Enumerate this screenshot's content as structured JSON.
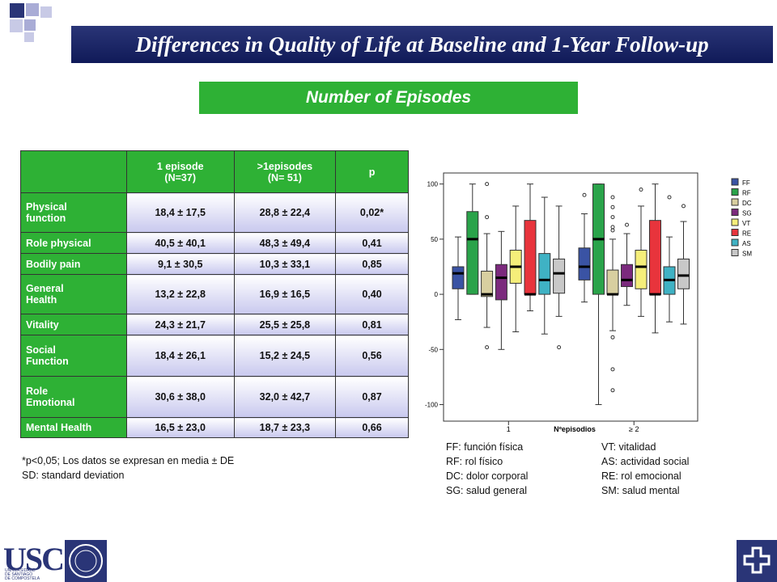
{
  "title": "Differences in Quality of Life at Baseline and 1-Year Follow-up",
  "subtitle": "Number of Episodes",
  "table": {
    "header": [
      "",
      "1 episode\n(N=37)",
      ">1episodes\n(N= 51)",
      "p"
    ],
    "rows": [
      [
        "Physical\nfunction",
        "18,4 ± 17,5",
        "28,8 ± 22,4",
        "0,02*"
      ],
      [
        "Role physical",
        "40,5 ± 40,1",
        "48,3 ± 49,4",
        "0,41"
      ],
      [
        "Bodily pain",
        "9,1 ± 30,5",
        "10,3 ± 33,1",
        "0,85"
      ],
      [
        "General\nHealth",
        "13,2 ± 22,8",
        "16,9 ± 16,5",
        "0,40"
      ],
      [
        "Vitality",
        "24,3 ± 21,7",
        "25,5 ± 25,8",
        "0,81"
      ],
      [
        "Social\nFunction",
        "18,4 ± 26,1",
        "15,2 ± 24,5",
        "0,56"
      ],
      [
        "Role\nEmotional",
        "30,6 ± 38,0",
        "32,0 ± 42,7",
        "0,87"
      ],
      [
        "Mental Health",
        "16,5 ± 23,0",
        "18,7 ± 23,3",
        "0,66"
      ]
    ]
  },
  "footnotes": [
    "*p<0,05; Los datos se expresan en media ± DE",
    "SD: standard deviation"
  ],
  "chart_data": {
    "type": "box",
    "categories": [
      "1",
      "≥ 2"
    ],
    "x_label": "Nºepisodios",
    "ylim": [
      -115,
      110
    ],
    "yticks": [
      -100,
      -50,
      0,
      50,
      100
    ],
    "series": [
      {
        "name": "FF",
        "color": "#3a53a4",
        "values": [
          {
            "min": -23,
            "q1": 5,
            "median": 19,
            "q3": 25,
            "max": 52,
            "outliers": []
          },
          {
            "min": -7,
            "q1": 13,
            "median": 25,
            "q3": 42,
            "max": 73,
            "outliers": [
              90
            ]
          }
        ]
      },
      {
        "name": "RF",
        "color": "#2aa34a",
        "values": [
          {
            "min": 0,
            "q1": 0,
            "median": 50,
            "q3": 75,
            "max": 100,
            "outliers": []
          },
          {
            "min": -100,
            "q1": 0,
            "median": 50,
            "q3": 100,
            "max": 100,
            "outliers": []
          }
        ]
      },
      {
        "name": "DC",
        "color": "#d8cfa0",
        "values": [
          {
            "min": -30,
            "q1": -2,
            "median": 0,
            "q3": 21,
            "max": 55,
            "outliers": [
              100,
              70,
              -48
            ]
          },
          {
            "min": -33,
            "q1": 0,
            "median": 0,
            "q3": 22,
            "max": 50,
            "outliers": [
              88,
              79,
              70,
              61,
              58,
              -39,
              -68,
              -87
            ]
          }
        ]
      },
      {
        "name": "SG",
        "color": "#7b2a7d",
        "values": [
          {
            "min": -50,
            "q1": -5,
            "median": 15,
            "q3": 27,
            "max": 57,
            "outliers": []
          },
          {
            "min": -10,
            "q1": 7,
            "median": 13,
            "q3": 27,
            "max": 55,
            "outliers": [
              63
            ]
          }
        ]
      },
      {
        "name": "VT",
        "color": "#f5ee7a",
        "values": [
          {
            "min": -34,
            "q1": 10,
            "median": 25,
            "q3": 40,
            "max": 80,
            "outliers": []
          },
          {
            "min": -20,
            "q1": 5,
            "median": 25,
            "q3": 40,
            "max": 80,
            "outliers": [
              95
            ]
          }
        ]
      },
      {
        "name": "RE",
        "color": "#e8343c",
        "values": [
          {
            "min": -15,
            "q1": 0,
            "median": 0,
            "q3": 67,
            "max": 100,
            "outliers": []
          },
          {
            "min": -35,
            "q1": 0,
            "median": 0,
            "q3": 67,
            "max": 100,
            "outliers": []
          }
        ]
      },
      {
        "name": "AS",
        "color": "#3fb2c4",
        "values": [
          {
            "min": -36,
            "q1": 0,
            "median": 13,
            "q3": 37,
            "max": 88,
            "outliers": []
          },
          {
            "min": -25,
            "q1": 0,
            "median": 13,
            "q3": 25,
            "max": 52,
            "outliers": [
              88
            ]
          }
        ]
      },
      {
        "name": "SM",
        "color": "#c8c8c8",
        "values": [
          {
            "min": -20,
            "q1": 1,
            "median": 19,
            "q3": 32,
            "max": 80,
            "outliers": [
              -48
            ]
          },
          {
            "min": -27,
            "q1": 5,
            "median": 17,
            "q3": 32,
            "max": 66,
            "outliers": [
              80
            ]
          }
        ]
      }
    ]
  },
  "key": [
    "FF: función física",
    "RF: rol físico",
    "DC: dolor corporal",
    "SG: salud general",
    "VT: vitalidad",
    "AS: actividad social",
    "RE: rol emocional",
    "SM: salud mental"
  ],
  "logo": {
    "text": "USC",
    "caption": "UNIVERSIDADE\nDE SANTIAGO\nDE COMPOSTELA"
  }
}
